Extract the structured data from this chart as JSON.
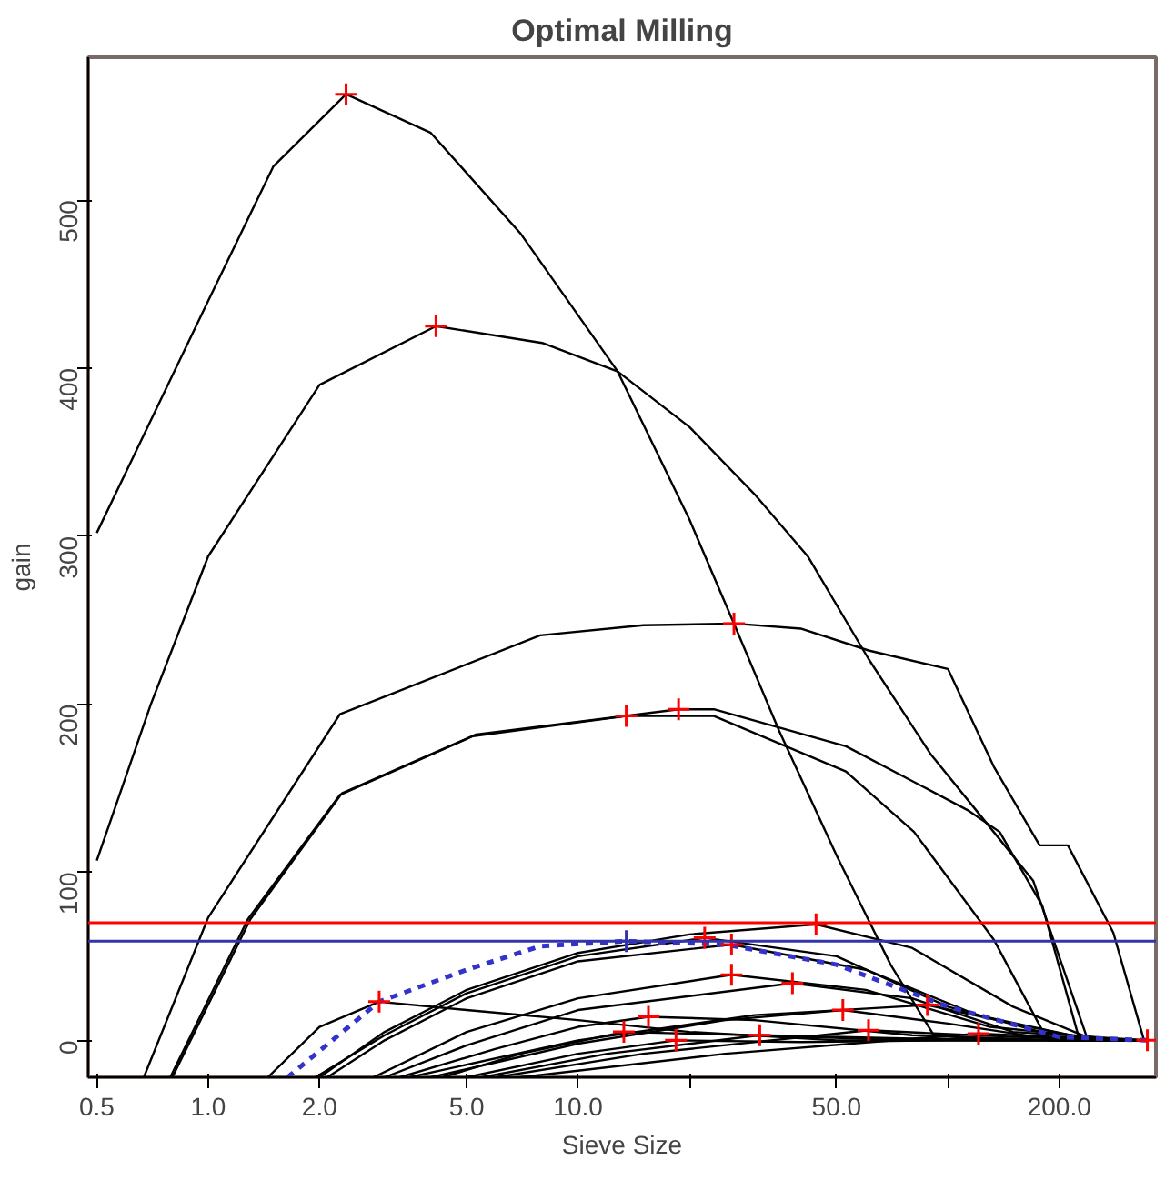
{
  "chart_data": {
    "type": "line",
    "title": "Optimal Milling",
    "xlabel": "Sieve Size",
    "ylabel": "gain",
    "log": "x",
    "grid": false,
    "xlim": [
      0.474,
      365
    ],
    "ylim": [
      -22,
      585
    ],
    "xticks": [
      {
        "value": 0.5,
        "label": "0.5"
      },
      {
        "value": 1,
        "label": "1.0"
      },
      {
        "value": 2,
        "label": "2.0"
      },
      {
        "value": 5,
        "label": "5.0"
      },
      {
        "value": 10,
        "label": "10.0"
      },
      {
        "value": 20,
        "label": null
      },
      {
        "value": 50,
        "label": "50.0"
      },
      {
        "value": 100,
        "label": null
      },
      {
        "value": 200,
        "label": "200.0"
      }
    ],
    "yticks": [
      0,
      100,
      200,
      300,
      400,
      500
    ],
    "ref_lines": [
      {
        "axis": "y",
        "value": 70,
        "color": "#ff0000"
      },
      {
        "axis": "y",
        "value": 59,
        "color": "#3333aa"
      }
    ],
    "series": [
      {
        "type": "line",
        "color": "#000000",
        "x": [
          0.5,
          1,
          1.5,
          2.36,
          4,
          7,
          12.8,
          20,
          26.4,
          35,
          50,
          70,
          91,
          120,
          346
        ],
        "values": [
          302,
          440,
          520,
          563,
          540,
          480,
          398,
          310,
          248,
          184,
          110,
          45,
          4,
          0,
          0
        ]
      },
      {
        "type": "line",
        "color": "#000000",
        "x": [
          0.5,
          0.7,
          1,
          2,
          4.13,
          8,
          12.8,
          20,
          30,
          41.8,
          61,
          90,
          133,
          170,
          239,
          346
        ],
        "values": [
          107,
          200,
          288,
          390,
          425,
          415,
          398,
          365,
          325,
          288,
          227,
          170,
          124,
          95,
          0,
          0
        ]
      },
      {
        "type": "line",
        "color": "#000000",
        "x": [
          0.67,
          1,
          2.27,
          7.9,
          15,
          26.4,
          40,
          61,
          100,
          133,
          177,
          211,
          280,
          339
        ],
        "values": [
          -22,
          73,
          194,
          241,
          247,
          248,
          245,
          232,
          221,
          163,
          116,
          116,
          64,
          0
        ]
      },
      {
        "type": "line",
        "color": "#000000",
        "x": [
          0.79,
          1.28,
          2.27,
          5.2,
          13.5,
          23.3,
          53,
          81,
          133,
          186,
          346
        ],
        "values": [
          -22,
          72,
          146,
          181,
          193,
          193,
          160,
          124,
          60,
          0,
          0
        ]
      },
      {
        "type": "line",
        "color": "#000000",
        "x": [
          0.8,
          1.3,
          2.3,
          5.3,
          18.7,
          23.3,
          53,
          113,
          138,
          180,
          227,
          346
        ],
        "values": [
          -22,
          72,
          147,
          182,
          197,
          197,
          175,
          137,
          124,
          80,
          0,
          0
        ]
      },
      {
        "type": "line",
        "color": "#000000",
        "x": [
          1.45,
          2,
          2.9,
          5,
          10,
          20,
          50,
          346
        ],
        "values": [
          -22,
          8,
          23,
          18,
          12,
          5,
          0,
          0
        ]
      },
      {
        "type": "line",
        "color": "#000000",
        "x": [
          2,
          3,
          5,
          10,
          20,
          44,
          80,
          150,
          250,
          346
        ],
        "values": [
          -22,
          5,
          30,
          52,
          63,
          69,
          55,
          20,
          0,
          0
        ]
      },
      {
        "type": "line",
        "color": "#000000",
        "x": [
          1.95,
          3,
          5,
          10,
          22,
          50,
          100,
          200,
          346
        ],
        "values": [
          -22,
          3,
          28,
          50,
          61,
          50,
          20,
          2,
          0
        ]
      },
      {
        "type": "line",
        "color": "#000000",
        "x": [
          2.1,
          3,
          5,
          10,
          26,
          60,
          120,
          250,
          346
        ],
        "values": [
          -22,
          0,
          25,
          47,
          57,
          42,
          15,
          0,
          0
        ]
      },
      {
        "type": "line",
        "color": "#000000",
        "x": [
          2.8,
          5,
          10,
          26,
          60,
          130,
          300,
          346
        ],
        "values": [
          -22,
          5,
          25,
          39,
          30,
          8,
          0,
          0
        ]
      },
      {
        "type": "line",
        "color": "#000000",
        "x": [
          3,
          5,
          10,
          38,
          80,
          150,
          346
        ],
        "values": [
          -22,
          -3,
          18,
          34,
          25,
          5,
          0
        ]
      },
      {
        "type": "line",
        "color": "#000000",
        "x": [
          3.5,
          10,
          30,
          88,
          150,
          250,
          346
        ],
        "values": [
          -22,
          0,
          15,
          21,
          10,
          0,
          0
        ]
      },
      {
        "type": "line",
        "color": "#000000",
        "x": [
          4,
          10,
          25,
          52,
          100,
          200,
          346
        ],
        "values": [
          -22,
          -2,
          12,
          18,
          10,
          0,
          0
        ]
      },
      {
        "type": "line",
        "color": "#000000",
        "x": [
          3.3,
          6,
          10,
          15.5,
          30,
          80,
          200,
          346
        ],
        "values": [
          -22,
          -5,
          8,
          14,
          12,
          3,
          0,
          0
        ]
      },
      {
        "type": "line",
        "color": "#000000",
        "x": [
          4.3,
          7,
          13.3,
          30,
          80,
          346
        ],
        "values": [
          -22,
          -8,
          5,
          3,
          0,
          0
        ]
      },
      {
        "type": "line",
        "color": "#000000",
        "x": [
          5,
          10,
          18.4,
          40,
          100,
          346
        ],
        "values": [
          -22,
          -8,
          0,
          -1,
          0,
          0
        ]
      },
      {
        "type": "line",
        "color": "#000000",
        "x": [
          5.5,
          12,
          31,
          80,
          346
        ],
        "values": [
          -22,
          -8,
          3,
          1,
          0
        ]
      },
      {
        "type": "line",
        "color": "#000000",
        "x": [
          6,
          15,
          61,
          150,
          346
        ],
        "values": [
          -22,
          -8,
          6,
          2,
          0
        ]
      },
      {
        "type": "line",
        "color": "#000000",
        "x": [
          7,
          25,
          121,
          250,
          346
        ],
        "values": [
          -22,
          -8,
          4,
          1,
          0
        ]
      },
      {
        "type": "line",
        "color": "#3333cc",
        "line_style": "dotted",
        "x": [
          1.64,
          2.9,
          5,
          7.9,
          13.5,
          25,
          50,
          100,
          200,
          346
        ],
        "values": [
          -22,
          23,
          42,
          56,
          59,
          57,
          45,
          20,
          2,
          0
        ]
      },
      {
        "type": "scatter",
        "color": "#ff0000",
        "marker": "cross",
        "x": [
          2.36,
          4.13,
          26.4,
          13.5,
          18.7,
          2.9,
          22,
          26,
          44,
          26,
          38,
          52,
          88,
          15.5,
          13.3,
          18.4,
          31,
          61,
          121,
          346
        ],
        "values": [
          563,
          425,
          248,
          193,
          197,
          23,
          61,
          57,
          69,
          39,
          34,
          18,
          21,
          14,
          5,
          0,
          3,
          6,
          4,
          0
        ]
      },
      {
        "type": "scatter",
        "color": "#3333aa",
        "marker": "cross",
        "x": [
          13.5
        ],
        "values": [
          59
        ]
      }
    ]
  }
}
